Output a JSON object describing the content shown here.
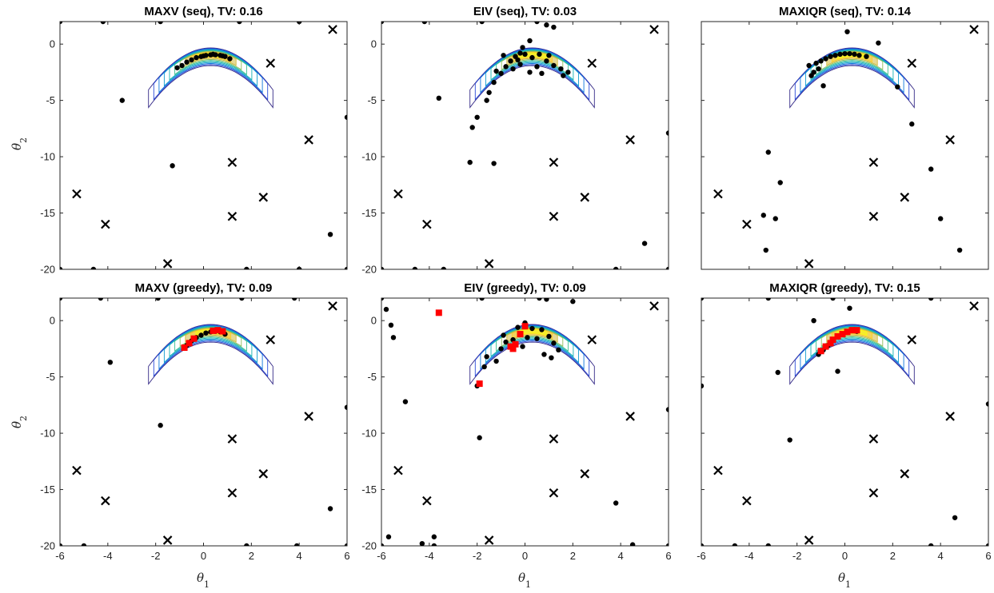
{
  "figure": {
    "xlabel_symbol": "θ",
    "xlabel_sub": "1",
    "ylabel_symbol": "θ",
    "ylabel_sub": "2"
  },
  "chart_data": [
    {
      "type": "scatter",
      "title": "MAXV (seq), TV: 0.16",
      "xlim": [
        -6,
        6
      ],
      "ylim": [
        -20,
        2
      ],
      "xticks": [
        -6,
        -4,
        -2,
        0,
        2,
        4,
        6
      ],
      "yticks": [
        -20,
        -15,
        -10,
        -5,
        0
      ],
      "contour": {
        "type": "banana-posterior-contours",
        "colormap": "parula"
      },
      "crosses": [
        [
          -5.3,
          -13.3
        ],
        [
          -4.1,
          -16.0
        ],
        [
          -1.5,
          -19.5
        ],
        [
          1.2,
          -10.5
        ],
        [
          1.2,
          -15.3
        ],
        [
          2.5,
          -13.6
        ],
        [
          2.8,
          -1.7
        ],
        [
          4.4,
          -8.5
        ],
        [
          5.4,
          1.3
        ]
      ],
      "points": [
        [
          -6,
          2
        ],
        [
          -4.2,
          2
        ],
        [
          -1.8,
          2
        ],
        [
          1.5,
          2
        ],
        [
          4,
          2
        ],
        [
          -3.4,
          -5
        ],
        [
          -1.3,
          -10.8
        ],
        [
          6,
          -6.5
        ],
        [
          5.3,
          -16.9
        ],
        [
          -6,
          -20
        ],
        [
          -4.6,
          -20
        ],
        [
          1.8,
          -20
        ],
        [
          4,
          -20
        ],
        [
          6,
          -20
        ],
        [
          -0.9,
          -1.9
        ],
        [
          -0.7,
          -1.6
        ],
        [
          -0.5,
          -1.4
        ],
        [
          -0.3,
          -1.2
        ],
        [
          -0.1,
          -1.1
        ],
        [
          0.1,
          -1.0
        ],
        [
          0.3,
          -0.95
        ],
        [
          0.5,
          -0.95
        ],
        [
          0.7,
          -1.0
        ],
        [
          0.9,
          -1.1
        ],
        [
          1.1,
          -1.3
        ],
        [
          -1.1,
          -2.1
        ],
        [
          0.0,
          -1.05
        ],
        [
          0.4,
          -0.9
        ],
        [
          0.8,
          -1.05
        ]
      ],
      "greedy_points": []
    },
    {
      "type": "scatter",
      "title": "EIV (seq), TV: 0.03",
      "xlim": [
        -6,
        6
      ],
      "ylim": [
        -20,
        2
      ],
      "xticks": [
        -6,
        -4,
        -2,
        0,
        2,
        4,
        6
      ],
      "yticks": [
        -20,
        -15,
        -10,
        -5,
        0
      ],
      "contour": {
        "type": "banana-posterior-contours",
        "colormap": "parula"
      },
      "crosses": [
        [
          -5.3,
          -13.3
        ],
        [
          -4.1,
          -16.0
        ],
        [
          -1.5,
          -19.5
        ],
        [
          1.2,
          -10.5
        ],
        [
          1.2,
          -15.3
        ],
        [
          2.5,
          -13.6
        ],
        [
          2.8,
          -1.7
        ],
        [
          4.4,
          -8.5
        ],
        [
          5.4,
          1.3
        ]
      ],
      "points": [
        [
          -6,
          2
        ],
        [
          -4.2,
          2
        ],
        [
          -1.8,
          2
        ],
        [
          0.5,
          2
        ],
        [
          0.9,
          1.7
        ],
        [
          1.2,
          1.5
        ],
        [
          -3.6,
          -4.8
        ],
        [
          -2.3,
          -10.5
        ],
        [
          -1.3,
          -10.6
        ],
        [
          6,
          -7.9
        ],
        [
          5.0,
          -17.7
        ],
        [
          -6,
          -20
        ],
        [
          -4.6,
          -20
        ],
        [
          -3.4,
          -20
        ],
        [
          3.8,
          -20
        ],
        [
          6,
          -20
        ],
        [
          -2.2,
          -7.4
        ],
        [
          -2.0,
          -6.5
        ],
        [
          -1.6,
          -5.0
        ],
        [
          -1.5,
          -4.3
        ],
        [
          -1.3,
          -3.4
        ],
        [
          -1.0,
          -2.6
        ],
        [
          -0.8,
          -2.0
        ],
        [
          -0.6,
          -1.5
        ],
        [
          -0.4,
          -1.1
        ],
        [
          -0.2,
          -0.8
        ],
        [
          0.0,
          -0.9
        ],
        [
          0.3,
          -1.2
        ],
        [
          0.6,
          -0.9
        ],
        [
          0.9,
          -1.5
        ],
        [
          1.2,
          -1.9
        ],
        [
          1.5,
          -2.2
        ],
        [
          1.8,
          -2.5
        ],
        [
          -0.5,
          -2.2
        ],
        [
          -0.2,
          -1.8
        ],
        [
          0.2,
          -2.5
        ],
        [
          0.5,
          -2.0
        ],
        [
          -0.9,
          -1.0
        ],
        [
          -0.1,
          -0.3
        ],
        [
          0.2,
          0.3
        ],
        [
          1.0,
          -1.0
        ],
        [
          1.6,
          -2.8
        ],
        [
          -1.2,
          -2.4
        ],
        [
          0.7,
          -2.6
        ],
        [
          -0.3,
          -1.4
        ]
      ],
      "greedy_points": []
    },
    {
      "type": "scatter",
      "title": "MAXIQR (seq), TV: 0.14",
      "xlim": [
        -6,
        6
      ],
      "ylim": [
        -20,
        2
      ],
      "xticks": [
        -6,
        -4,
        -2,
        0,
        2,
        4,
        6
      ],
      "yticks": [
        -20,
        -15,
        -10,
        -5,
        0
      ],
      "contour": {
        "type": "banana-posterior-contours",
        "colormap": "parula"
      },
      "crosses": [
        [
          -5.3,
          -13.3
        ],
        [
          -4.1,
          -16.0
        ],
        [
          -1.5,
          -19.5
        ],
        [
          1.2,
          -10.5
        ],
        [
          1.2,
          -15.3
        ],
        [
          2.5,
          -13.6
        ],
        [
          2.8,
          -1.7
        ],
        [
          4.4,
          -8.5
        ],
        [
          5.4,
          1.3
        ]
      ],
      "points": [
        [
          0.1,
          1.1
        ],
        [
          1.4,
          0.1
        ],
        [
          2.2,
          -3.8
        ],
        [
          2.8,
          -7.1
        ],
        [
          -3.2,
          -9.6
        ],
        [
          -2.7,
          -12.3
        ],
        [
          3.6,
          -11.1
        ],
        [
          -3.4,
          -15.2
        ],
        [
          -2.9,
          -15.5
        ],
        [
          4.0,
          -15.5
        ],
        [
          -3.3,
          -18.3
        ],
        [
          4.8,
          -18.3
        ],
        [
          -1.5,
          -1.9
        ],
        [
          -1.2,
          -1.7
        ],
        [
          -1.0,
          -1.5
        ],
        [
          -0.8,
          -1.3
        ],
        [
          -0.6,
          -1.1
        ],
        [
          -0.4,
          -1.0
        ],
        [
          -0.2,
          -0.9
        ],
        [
          0.0,
          -0.85
        ],
        [
          0.2,
          -0.85
        ],
        [
          0.4,
          -0.9
        ],
        [
          0.6,
          -1.0
        ],
        [
          -1.3,
          -2.5
        ],
        [
          -1.1,
          -2.2
        ],
        [
          -0.9,
          -3.7
        ],
        [
          -1.4,
          -2.8
        ],
        [
          0.9,
          -1.1
        ]
      ],
      "greedy_points": []
    },
    {
      "type": "scatter",
      "title": "MAXV (greedy), TV: 0.09",
      "xlim": [
        -6,
        6
      ],
      "ylim": [
        -20,
        2
      ],
      "xticks": [
        -6,
        -4,
        -2,
        0,
        2,
        4,
        6
      ],
      "yticks": [
        -20,
        -15,
        -10,
        -5,
        0
      ],
      "contour": {
        "type": "banana-posterior-contours",
        "colormap": "parula"
      },
      "crosses": [
        [
          -5.3,
          -13.3
        ],
        [
          -4.1,
          -16.0
        ],
        [
          -1.5,
          -19.5
        ],
        [
          1.2,
          -10.5
        ],
        [
          1.2,
          -15.3
        ],
        [
          2.5,
          -13.6
        ],
        [
          2.8,
          -1.7
        ],
        [
          4.4,
          -8.5
        ],
        [
          5.4,
          1.3
        ]
      ],
      "points": [
        [
          -6,
          2
        ],
        [
          -4.3,
          2
        ],
        [
          -1.9,
          2
        ],
        [
          1.6,
          2
        ],
        [
          3.8,
          2
        ],
        [
          -3.9,
          -3.7
        ],
        [
          -1.8,
          -9.3
        ],
        [
          6,
          -7.7
        ],
        [
          5.3,
          -16.7
        ],
        [
          -6,
          -20
        ],
        [
          -5.0,
          -20
        ],
        [
          1.8,
          -20
        ],
        [
          3.9,
          -20
        ],
        [
          6,
          -20
        ],
        [
          -0.5,
          -1.8
        ],
        [
          -0.3,
          -1.5
        ],
        [
          -0.1,
          -1.3
        ],
        [
          0.1,
          -1.1
        ],
        [
          0.3,
          -1.0
        ],
        [
          0.5,
          -0.95
        ],
        [
          0.7,
          -1.0
        ],
        [
          -0.7,
          -2.2
        ],
        [
          0.9,
          -1.2
        ]
      ],
      "greedy_points": [
        [
          -0.8,
          -2.4
        ],
        [
          -0.6,
          -2.0
        ],
        [
          -0.4,
          -1.6
        ],
        [
          0.4,
          -0.9
        ],
        [
          0.6,
          -0.85
        ],
        [
          0.8,
          -0.95
        ]
      ]
    },
    {
      "type": "scatter",
      "title": "EIV (greedy), TV: 0.09",
      "xlim": [
        -6,
        6
      ],
      "ylim": [
        -20,
        2
      ],
      "xticks": [
        -6,
        -4,
        -2,
        0,
        2,
        4,
        6
      ],
      "yticks": [
        -20,
        -15,
        -10,
        -5,
        0
      ],
      "contour": {
        "type": "banana-posterior-contours",
        "colormap": "parula"
      },
      "crosses": [
        [
          -5.3,
          -13.3
        ],
        [
          -4.1,
          -16.0
        ],
        [
          -1.5,
          -19.5
        ],
        [
          1.2,
          -10.5
        ],
        [
          1.2,
          -15.3
        ],
        [
          2.5,
          -13.6
        ],
        [
          2.8,
          -1.7
        ],
        [
          4.4,
          -8.5
        ],
        [
          5.4,
          1.3
        ]
      ],
      "points": [
        [
          -6,
          2
        ],
        [
          -1.8,
          2
        ],
        [
          0.6,
          2
        ],
        [
          0.9,
          1.9
        ],
        [
          2.0,
          1.7
        ],
        [
          -5.8,
          1.0
        ],
        [
          -5.6,
          -0.4
        ],
        [
          -5.5,
          -1.5
        ],
        [
          -5.0,
          -7.2
        ],
        [
          -2.0,
          -5.8
        ],
        [
          -1.9,
          -10.4
        ],
        [
          -5.7,
          -19.2
        ],
        [
          -3.8,
          -19.2
        ],
        [
          -4.3,
          -19.8
        ],
        [
          -3.8,
          -20
        ],
        [
          -6,
          -20
        ],
        [
          3.8,
          -16.2
        ],
        [
          4.5,
          -19.9
        ],
        [
          6,
          -20
        ],
        [
          6,
          -7.9
        ],
        [
          -1.7,
          -4.1
        ],
        [
          -1.6,
          -3.2
        ],
        [
          -1.2,
          -3.6
        ],
        [
          -1.0,
          -2.5
        ],
        [
          -0.8,
          -1.9
        ],
        [
          -0.3,
          -0.6
        ],
        [
          0.0,
          -0.2
        ],
        [
          0.3,
          -0.7
        ],
        [
          0.7,
          -0.8
        ],
        [
          1.0,
          -1.4
        ],
        [
          1.2,
          -2.0
        ],
        [
          1.4,
          -2.6
        ],
        [
          -0.5,
          -1.7
        ],
        [
          0.1,
          -1.5
        ],
        [
          0.5,
          -1.6
        ],
        [
          -0.1,
          -2.3
        ],
        [
          0.8,
          -3.0
        ],
        [
          1.1,
          -3.3
        ],
        [
          -0.9,
          -1.3
        ]
      ],
      "greedy_points": [
        [
          -3.6,
          0.7
        ],
        [
          -1.9,
          -5.6
        ],
        [
          -0.6,
          -2.3
        ],
        [
          -0.4,
          -2.1
        ],
        [
          -0.2,
          -1.2
        ],
        [
          0.0,
          -0.5
        ],
        [
          -0.5,
          -2.5
        ]
      ]
    },
    {
      "type": "scatter",
      "title": "MAXIQR (greedy), TV: 0.15",
      "xlim": [
        -6,
        6
      ],
      "ylim": [
        -20,
        2
      ],
      "xticks": [
        -6,
        -4,
        -2,
        0,
        2,
        4,
        6
      ],
      "yticks": [
        -20,
        -15,
        -10,
        -5,
        0
      ],
      "contour": {
        "type": "banana-posterior-contours",
        "colormap": "parula"
      },
      "crosses": [
        [
          -5.3,
          -13.3
        ],
        [
          -4.1,
          -16.0
        ],
        [
          -1.5,
          -19.5
        ],
        [
          1.2,
          -10.5
        ],
        [
          1.2,
          -15.3
        ],
        [
          2.5,
          -13.6
        ],
        [
          2.8,
          -1.7
        ],
        [
          4.4,
          -8.5
        ],
        [
          5.4,
          1.3
        ]
      ],
      "points": [
        [
          -6,
          2
        ],
        [
          -3.2,
          2
        ],
        [
          -0.5,
          2
        ],
        [
          3.6,
          2
        ],
        [
          0.2,
          1.1
        ],
        [
          -1.3,
          0.0
        ],
        [
          -6,
          -5.8
        ],
        [
          -2.8,
          -4.6
        ],
        [
          -0.3,
          -4.5
        ],
        [
          6,
          -7.4
        ],
        [
          -2.3,
          -10.6
        ],
        [
          4.6,
          -17.5
        ],
        [
          -6,
          -20
        ],
        [
          -4.6,
          -20
        ],
        [
          -3.2,
          -20
        ],
        [
          3.6,
          -20
        ],
        [
          6,
          -20
        ],
        [
          -1.1,
          -3.0
        ],
        [
          -0.9,
          -2.6
        ],
        [
          -0.7,
          -2.2
        ],
        [
          0.3,
          -0.9
        ],
        [
          0.5,
          -0.95
        ]
      ],
      "greedy_points": [
        [
          -1.0,
          -2.7
        ],
        [
          -0.8,
          -2.3
        ],
        [
          -0.6,
          -2.0
        ],
        [
          -0.5,
          -1.7
        ],
        [
          -0.3,
          -1.4
        ],
        [
          -0.1,
          -1.2
        ],
        [
          0.1,
          -1.0
        ],
        [
          0.3,
          -0.85
        ],
        [
          0.5,
          -0.85
        ]
      ]
    }
  ]
}
